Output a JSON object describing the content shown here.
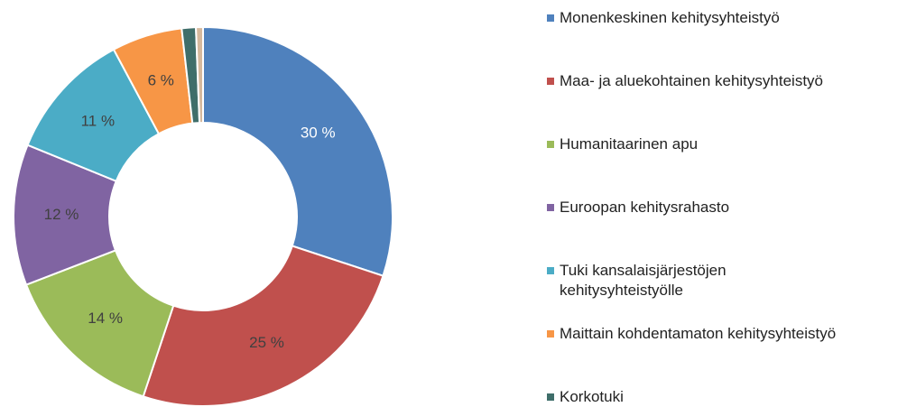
{
  "chart_data": {
    "type": "donut",
    "categories": [
      "Monenkeskinen kehitysyhteistyö",
      "Maa- ja aluekohtainen kehitysyhteistyö",
      "Humanitaarinen apu",
      "Euroopan kehitysrahasto",
      "Tuki kansalaisjärjestöjen kehitysyhteistyölle",
      "Maittain kohdentamaton kehitysyhteistyö",
      "Korkotuki",
      null
    ],
    "values": [
      30,
      25,
      14,
      12,
      11,
      6,
      1.2,
      0.6
    ],
    "value_labels": [
      "30 %",
      "25 %",
      "14 %",
      "12 %",
      "11 %",
      "6 %",
      null,
      null
    ],
    "colors": [
      "#4f81bd",
      "#c0504d",
      "#9bbb59",
      "#8064a2",
      "#4bacc6",
      "#f79646",
      "#3f6e6a",
      "#d6b99d"
    ]
  }
}
